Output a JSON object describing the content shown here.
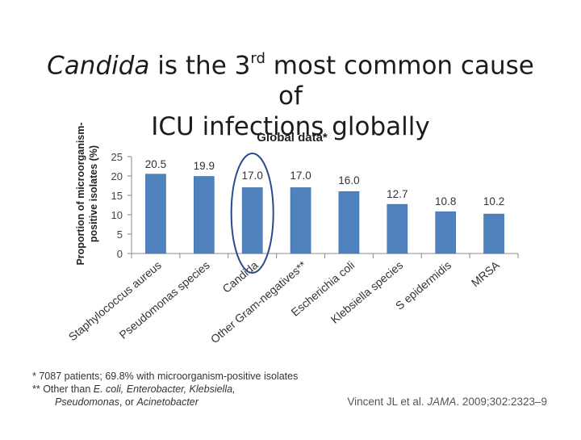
{
  "slide": {
    "title_italic": "Candida",
    "title_part1": " is the 3",
    "title_sup": "rd",
    "title_part2": " most common cause of",
    "title_line2": "ICU infections globally"
  },
  "chart_data": {
    "type": "bar",
    "title": "Global data*",
    "ylabel_line1": "Proportion of microorganism-",
    "ylabel_line2": "positive isolates (%)",
    "xlabel": "",
    "ylim": [
      0,
      25
    ],
    "yticks": [
      0,
      5,
      10,
      15,
      20,
      25
    ],
    "grid": false,
    "categories": [
      "Staphylococcus aureus",
      "Pseudomonas species",
      "Candida",
      "Other Gram-negatives**",
      "Escherichia coli",
      "Klebsiella species",
      "S epidermidis",
      "MRSA"
    ],
    "values": [
      20.5,
      19.9,
      17.0,
      17.0,
      16.0,
      12.7,
      10.8,
      10.2
    ],
    "value_labels": [
      "20.5",
      "19.9",
      "17.0",
      "17.0",
      "16.0",
      "12.7",
      "10.8",
      "10.2"
    ],
    "highlighted_category": "Candida",
    "colors": {
      "bar": "#4f81bd",
      "bar_edge": "#3a6aa3",
      "highlight_ellipse": "#2b4a8c",
      "axis": "#8c8c8c"
    }
  },
  "footnotes": {
    "line1": "* 7087 patients; 69.8% with microorganism-positive isolates",
    "line2_pre": "** Other than ",
    "line2_italic": "E. coli, Enterobacter, Klebsiella,",
    "line3_italic": "Pseudomonas",
    "line3_post": ", or ",
    "line3_italic2": "Acinetobacter"
  },
  "citation": {
    "authors": "Vincent JL et al. ",
    "journal": "JAMA",
    "details": ". 2009;302:2323–9"
  }
}
